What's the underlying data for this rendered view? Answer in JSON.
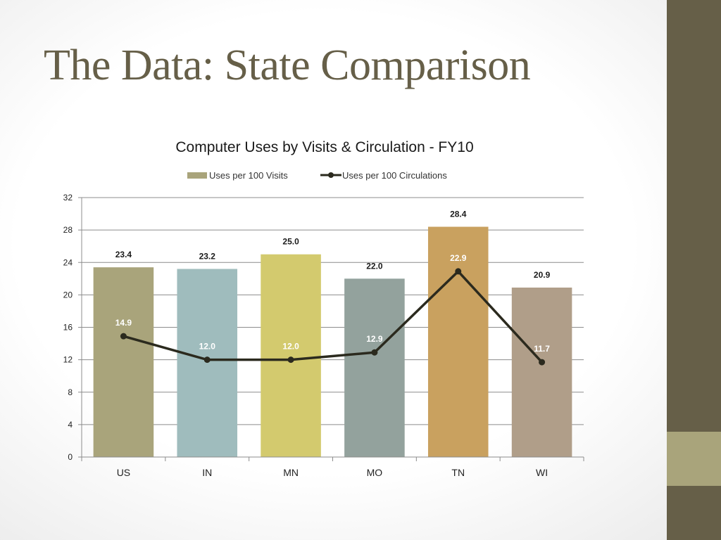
{
  "slide": {
    "title": "The Data: State Comparison"
  },
  "colors": {
    "sidebar": "#665f48",
    "sidebar_accent": "#a9a47b",
    "title": "#665f48",
    "line": "#2b2a1e"
  },
  "chart_data": {
    "type": "bar",
    "title": "Computer Uses by Visits & Circulation - FY10",
    "xlabel": "",
    "ylabel": "",
    "categories": [
      "US",
      "IN",
      "MN",
      "MO",
      "TN",
      "WI"
    ],
    "ylim": [
      0,
      32
    ],
    "yticks": [
      0,
      4,
      8,
      12,
      16,
      20,
      24,
      28,
      32
    ],
    "grid": true,
    "legend": "top",
    "series": [
      {
        "name": "Uses per 100 Visits",
        "kind": "bar",
        "values": [
          23.4,
          23.2,
          25.0,
          22.0,
          28.4,
          20.9
        ],
        "labels": [
          "23.4",
          "23.2",
          "25.0",
          "22.0",
          "28.4",
          "20.9"
        ],
        "colors": [
          "#a9a47b",
          "#9fbcbd",
          "#d3ca6e",
          "#93a29d",
          "#c9a15f",
          "#b09e89"
        ]
      },
      {
        "name": "Uses per 100 Circulations",
        "kind": "line",
        "values": [
          14.9,
          12.0,
          12.0,
          12.9,
          22.9,
          11.7
        ],
        "labels": [
          "14.9",
          "12.0",
          "12.0",
          "12.9",
          "22.9",
          "11.7"
        ],
        "color": "#2b2a1e"
      }
    ]
  }
}
